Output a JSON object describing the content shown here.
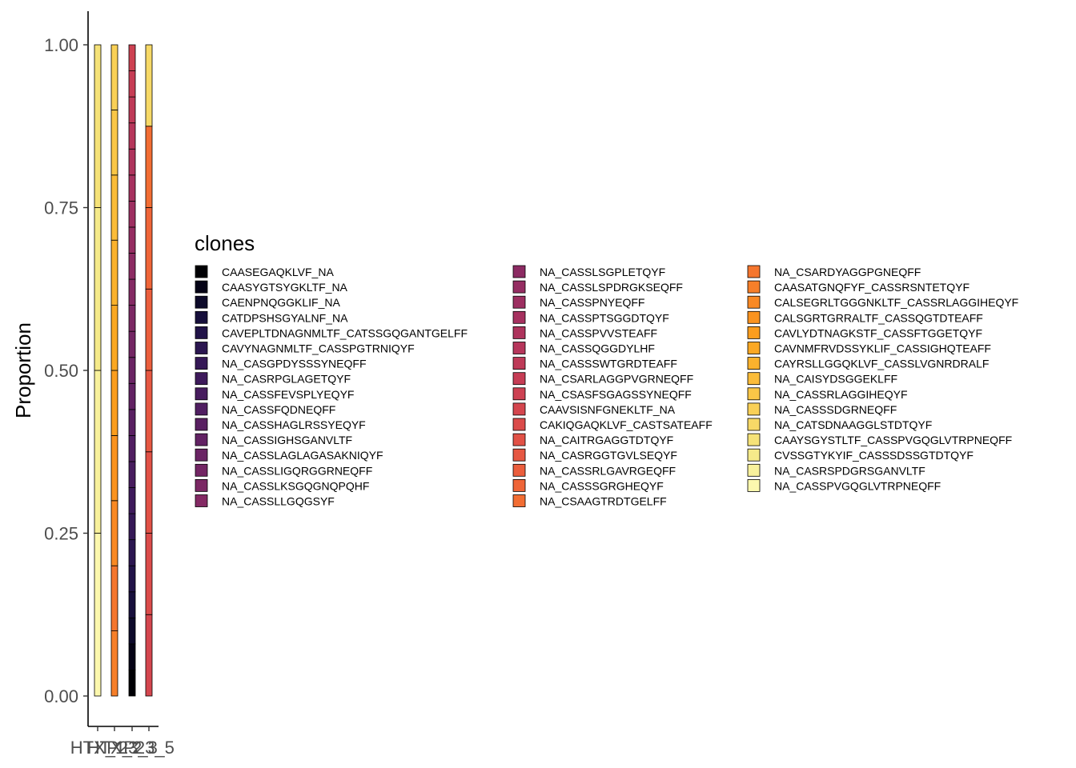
{
  "chart_data": {
    "type": "bar",
    "stacked": true,
    "ylabel": "Proportion",
    "ylim": [
      0,
      1
    ],
    "yticks": [
      "0.00",
      "0.25",
      "0.50",
      "0.75",
      "1.00"
    ],
    "legend_title": "clones",
    "legend_position": "right",
    "categories": [
      "HTX_1",
      "HTX_2",
      "P23_3",
      "P23_5"
    ],
    "xtick_labels_overlapping": true,
    "clones": [
      {
        "name": "CAASEGAQKLVF_NA",
        "color": "#000004"
      },
      {
        "name": "CAASYGTSYGKLTF_NA",
        "color": "#050316"
      },
      {
        "name": "CAENPNQGGKLIF_NA",
        "color": "#0d0a2a"
      },
      {
        "name": "CATDPSHSGYALNF_NA",
        "color": "#170f3c"
      },
      {
        "name": "CAVEPLTDNAGNMLTF_CATSSGQGANTGELFF",
        "color": "#211348"
      },
      {
        "name": "CAVYNAGNMLTF_CASSPGTRNIQYF",
        "color": "#2b1650"
      },
      {
        "name": "NA_CASGPDYSSSYNEQFF",
        "color": "#351856"
      },
      {
        "name": "NA_CASRPGLAGETQYF",
        "color": "#3e1a5b"
      },
      {
        "name": "NA_CASSFEVSPLYEQYF",
        "color": "#471c5e"
      },
      {
        "name": "NA_CASSFQDNEQFF",
        "color": "#501e61"
      },
      {
        "name": "NA_CASSHAGLRSSYEQYF",
        "color": "#592062"
      },
      {
        "name": "NA_CASSIGHSGANVLTF",
        "color": "#622263"
      },
      {
        "name": "NA_CASSLAGLAGASAKNIQYF",
        "color": "#6a2464"
      },
      {
        "name": "NA_CASSLIGQRGGRNEQFF",
        "color": "#732664"
      },
      {
        "name": "NA_CASSLKSGQGNQPQHF",
        "color": "#7b2864"
      },
      {
        "name": "NA_CASSLLGQGSYF",
        "color": "#842a64"
      },
      {
        "name": "NA_CASSLSGPLETQYF",
        "color": "#8c2b63"
      },
      {
        "name": "NA_CASSLSPDRGKSEQFF",
        "color": "#952d62"
      },
      {
        "name": "NA_CASSPNYEQFF",
        "color": "#9d2f61"
      },
      {
        "name": "NA_CASSPTSGGDTQYF",
        "color": "#a6315f"
      },
      {
        "name": "NA_CASSPVVSTEAFF",
        "color": "#ae345d"
      },
      {
        "name": "NA_CASSQGGDYLHF",
        "color": "#b6365b"
      },
      {
        "name": "NA_CASSSWTGRDTEAFF",
        "color": "#be3a58"
      },
      {
        "name": "NA_CSARLAGGPVGRNEQFF",
        "color": "#c63d55"
      },
      {
        "name": "NA_CSASFSGAGSSYNEQFF",
        "color": "#cd4152"
      },
      {
        "name": "CAAVSISNFGNEKLTF_NA",
        "color": "#d4464e"
      },
      {
        "name": "CAKIQGAQKLVF_CASTSATEAFF",
        "color": "#db4b4a"
      },
      {
        "name": "NA_CAITRGAGGTDTQYF",
        "color": "#e15146"
      },
      {
        "name": "NA_CASRGGTGVLSEQYF",
        "color": "#e65742"
      },
      {
        "name": "NA_CASSRLGAVRGEQFF",
        "color": "#eb5e3d"
      },
      {
        "name": "NA_CASSSGRGHEQYF",
        "color": "#ef6538"
      },
      {
        "name": "NA_CSAAGTRDTGELFF",
        "color": "#f26d33"
      },
      {
        "name": "NA_CSARDYAGGPGNEQFF",
        "color": "#f5762e"
      },
      {
        "name": "CAASATGNQFYF_CASSRSNTETQYF",
        "color": "#f77f29"
      },
      {
        "name": "CALSEGRLTGGGNKLTF_CASSRLAGGIHEQYF",
        "color": "#f98924"
      },
      {
        "name": "CALSGRTGRRALTF_CASSQGTDTEAFF",
        "color": "#fa931f"
      },
      {
        "name": "CAVLYDTNAGKSTF_CASSFTGGETQYF",
        "color": "#fb9d1e"
      },
      {
        "name": "CAVNMFRVDSSYKLIF_CASSIGHQTEAFF",
        "color": "#fba823"
      },
      {
        "name": "CAYRSLLGGQKLVF_CASSLVGNRDRALF",
        "color": "#fbb22d"
      },
      {
        "name": "NA_CAISYDSGGEKLFF",
        "color": "#fbbc39"
      },
      {
        "name": "NA_CASSRLAGGIHEQYF",
        "color": "#fac647"
      },
      {
        "name": "NA_CASSSDGRNEQFF",
        "color": "#f9d056"
      },
      {
        "name": "NA_CATSDNAAGGLSTDTQYF",
        "color": "#f7d967"
      },
      {
        "name": "CAAYSGYSTLTF_CASSPVGQGLVTRPNEQFF",
        "color": "#f5e278"
      },
      {
        "name": "CVSSGTYKYIF_CASSSDSSGTDTQYF",
        "color": "#f5ea8a"
      },
      {
        "name": "NA_CASRSPDGRSGANVLTF",
        "color": "#f8f19c"
      },
      {
        "name": "NA_CASSPVGQGLVTRPNEQFF",
        "color": "#fcf8ae"
      }
    ],
    "series": [
      {
        "category": "HTX_1",
        "segments": [
          {
            "clone": "NA_CASSPVGQGLVTRPNEQFF",
            "value": 0.25
          },
          {
            "clone": "NA_CASRSPDGRSGANVLTF",
            "value": 0.25
          },
          {
            "clone": "CVSSGTYKYIF_CASSSDSSGTDTQYF",
            "value": 0.25
          },
          {
            "clone": "CAAYSGYSTLTF_CASSPVGQGLVTRPNEQFF",
            "value": 0.25
          }
        ]
      },
      {
        "category": "HTX_2",
        "segments": [
          {
            "clone": "CAASATGNQFYF_CASSRSNTETQYF",
            "value": 0.1
          },
          {
            "clone": "NA_CSARDYAGGPGNEQFF",
            "value": 0.1
          },
          {
            "clone": "CALSEGRLTGGGNKLTF_CASSRLAGGIHEQYF",
            "value": 0.1
          },
          {
            "clone": "CALSGRTGRRALTF_CASSQGTDTEAFF",
            "value": 0.1
          },
          {
            "clone": "CAVLYDTNAGKSTF_CASSFTGGETQYF",
            "value": 0.1
          },
          {
            "clone": "CAVNMFRVDSSYKLIF_CASSIGHQTEAFF",
            "value": 0.1
          },
          {
            "clone": "CAYRSLLGGQKLVF_CASSLVGNRDRALF",
            "value": 0.1
          },
          {
            "clone": "NA_CAISYDSGGEKLFF",
            "value": 0.1
          },
          {
            "clone": "NA_CASSRLAGGIHEQYF",
            "value": 0.1
          },
          {
            "clone": "NA_CASSSDGRNEQFF",
            "value": 0.1
          }
        ]
      },
      {
        "category": "P23_3",
        "segments": [
          {
            "clone": "CAASEGAQKLVF_NA",
            "value": 0.04
          },
          {
            "clone": "CAASYGTSYGKLTF_NA",
            "value": 0.04
          },
          {
            "clone": "CAENPNQGGKLIF_NA",
            "value": 0.04
          },
          {
            "clone": "CATDPSHSGYALNF_NA",
            "value": 0.04
          },
          {
            "clone": "CAVEPLTDNAGNMLTF_CATSSGQGANTGELFF",
            "value": 0.04
          },
          {
            "clone": "CAVYNAGNMLTF_CASSPGTRNIQYF",
            "value": 0.04
          },
          {
            "clone": "NA_CASGPDYSSSYNEQFF",
            "value": 0.04
          },
          {
            "clone": "NA_CASRPGLAGETQYF",
            "value": 0.04
          },
          {
            "clone": "NA_CASSFEVSPLYEQYF",
            "value": 0.04
          },
          {
            "clone": "NA_CASSFQDNEQFF",
            "value": 0.04
          },
          {
            "clone": "NA_CASSHAGLRSSYEQYF",
            "value": 0.04
          },
          {
            "clone": "NA_CASSIGHSGANVLTF",
            "value": 0.04
          },
          {
            "clone": "NA_CASSLAGLAGASAKNIQYF",
            "value": 0.04
          },
          {
            "clone": "NA_CASSLIGQRGGRNEQFF",
            "value": 0.04
          },
          {
            "clone": "NA_CASSLKSGQGNQPQHF",
            "value": 0.04
          },
          {
            "clone": "NA_CASSLLGQGSYF",
            "value": 0.04
          },
          {
            "clone": "NA_CASSLSGPLETQYF",
            "value": 0.04
          },
          {
            "clone": "NA_CASSLSPDRGKSEQFF",
            "value": 0.04
          },
          {
            "clone": "NA_CASSPNYEQFF",
            "value": 0.04
          },
          {
            "clone": "NA_CASSPTSGGDTQYF",
            "value": 0.04
          },
          {
            "clone": "NA_CASSPVVSTEAFF",
            "value": 0.04
          },
          {
            "clone": "NA_CASSQGGDYLHF",
            "value": 0.04
          },
          {
            "clone": "NA_CASSSWTGRDTEAFF",
            "value": 0.04
          },
          {
            "clone": "NA_CSARLAGGPVGRNEQFF",
            "value": 0.04
          },
          {
            "clone": "NA_CSASFSGAGSSYNEQFF",
            "value": 0.04
          }
        ]
      },
      {
        "category": "P23_5",
        "segments": [
          {
            "clone": "CAAVSISNFGNEKLTF_NA",
            "value": 0.125
          },
          {
            "clone": "CAKIQGAQKLVF_CASTSATEAFF",
            "value": 0.125
          },
          {
            "clone": "NA_CAITRGAGGTDTQYF",
            "value": 0.125
          },
          {
            "clone": "NA_CASRGGTGVLSEQYF",
            "value": 0.125
          },
          {
            "clone": "NA_CASSRLGAVRGEQFF",
            "value": 0.125
          },
          {
            "clone": "NA_CASSSGRGHEQYF",
            "value": 0.125
          },
          {
            "clone": "NA_CSAAGTRDTGELFF",
            "value": 0.125
          },
          {
            "clone": "NA_CATSDNAAGGLSTDTQYF",
            "value": 0.125
          }
        ]
      }
    ]
  }
}
